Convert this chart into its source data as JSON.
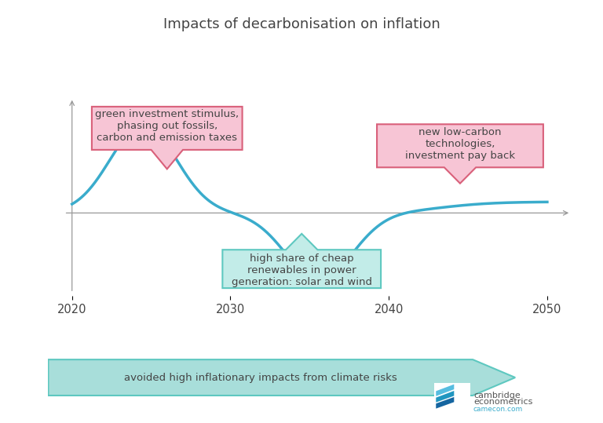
{
  "title": "Impacts of decarbonisation on inflation",
  "title_fontsize": 13,
  "background_color": "#ffffff",
  "curve_color": "#3aaccc",
  "curve_linewidth": 2.5,
  "x_ticks": [
    2020,
    2030,
    2040,
    2050
  ],
  "box1_text": "green investment stimulus,\nphasing out fossils,\ncarbon and emission taxes",
  "box1_facecolor": "#f7c5d5",
  "box1_edgecolor": "#d9607a",
  "box2_text": "new low-carbon\ntechnologies,\ninvestment pay back",
  "box2_facecolor": "#f7c5d5",
  "box2_edgecolor": "#d9607a",
  "box3_text": "high share of cheap\nrenewables in power\ngeneration: solar and wind",
  "box3_facecolor": "#c2ece8",
  "box3_edgecolor": "#5ec8c0",
  "arrow_text": "avoided high inflationary impacts from climate risks",
  "arrow_facecolor": "#a8deda",
  "arrow_edgecolor": "#5ec8c0",
  "text_color": "#444444",
  "axis_color": "#999999"
}
